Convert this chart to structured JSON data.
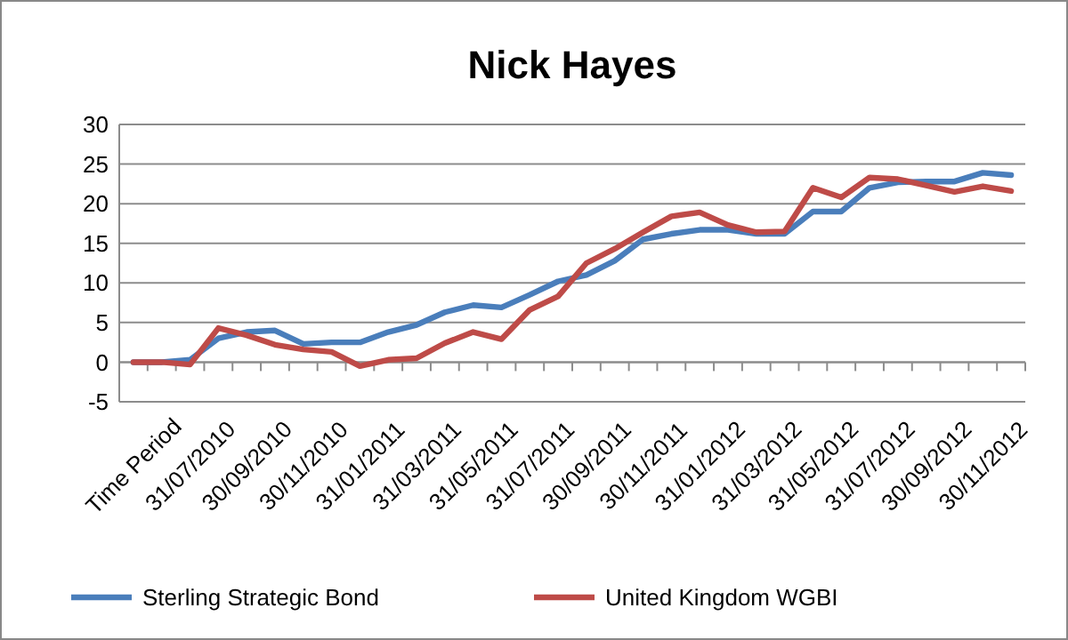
{
  "chart_data": {
    "type": "line",
    "title": "Nick Hayes",
    "categories": [
      "Time Period",
      null,
      "31/07/2010",
      null,
      "30/09/2010",
      null,
      "30/11/2010",
      null,
      "31/01/2011",
      null,
      "31/03/2011",
      null,
      "31/05/2011",
      null,
      "31/07/2011",
      null,
      "30/09/2011",
      null,
      "30/11/2011",
      null,
      "31/01/2012",
      null,
      "31/03/2012",
      null,
      "31/05/2012",
      null,
      "31/07/2012",
      null,
      "30/09/2012",
      null,
      "30/11/2012",
      null
    ],
    "series": [
      {
        "name": "Sterling Strategic Bond",
        "color": "#4a7ebb",
        "values": [
          0,
          0,
          0.3,
          3,
          3.8,
          4,
          2.3,
          2.5,
          2.5,
          3.8,
          4.7,
          6.3,
          7.2,
          6.9,
          8.5,
          10.2,
          11,
          12.8,
          15.5,
          16.2,
          16.7,
          16.7,
          16.2,
          16.2,
          19,
          19,
          22,
          22.7,
          22.8,
          22.8,
          23.9,
          23.6
        ]
      },
      {
        "name": "United Kingdom WGBI",
        "color": "#be4b48",
        "values": [
          0,
          0,
          -0.3,
          4.3,
          3.4,
          2.2,
          1.6,
          1.3,
          -0.5,
          0.3,
          0.5,
          2.4,
          3.8,
          2.9,
          6.6,
          8.3,
          12.5,
          14.3,
          16.4,
          18.4,
          18.9,
          17.3,
          16.4,
          16.5,
          22,
          20.8,
          23.3,
          23.1,
          22.3,
          21.5,
          22.2,
          21.6
        ]
      }
    ],
    "ylim": [
      -5,
      30
    ],
    "yticks": [
      -5,
      0,
      5,
      10,
      15,
      20,
      25,
      30
    ],
    "grid": "y",
    "legend": "bottom",
    "marker": "none",
    "line_style": "solid"
  }
}
